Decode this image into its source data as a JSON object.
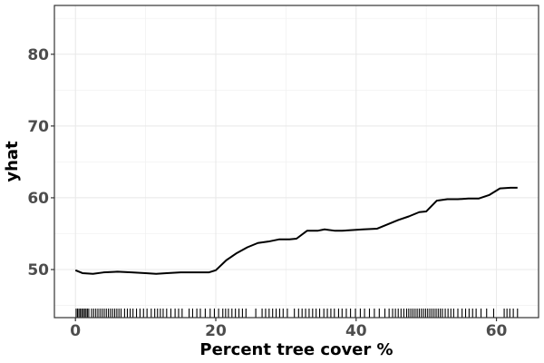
{
  "chart_data": {
    "type": "line",
    "xlabel": "Percent tree cover %",
    "ylabel": "yhat",
    "xlim": [
      -3,
      66
    ],
    "ylim": [
      43.3,
      86.8
    ],
    "x_ticks": [
      0,
      20,
      40,
      60
    ],
    "y_ticks": [
      50,
      60,
      70,
      80
    ],
    "grid": true,
    "series": [
      {
        "x": [
          0,
          1,
          2.5,
          4,
          6,
          8,
          10,
          11.5,
          13,
          15,
          17,
          19,
          20,
          21.5,
          23,
          24.5,
          26,
          27.5,
          29,
          30.5,
          31.5,
          33,
          34.5,
          35.5,
          37,
          38,
          39.5,
          41,
          43,
          44.5,
          46,
          47.5,
          49,
          50,
          51.5,
          53,
          54.5,
          56,
          57.5,
          59,
          60.5,
          62,
          63
        ],
        "y": [
          49.9,
          49.5,
          49.4,
          49.6,
          49.7,
          49.6,
          49.5,
          49.4,
          49.5,
          49.6,
          49.6,
          49.6,
          49.9,
          51.3,
          52.3,
          53.1,
          53.7,
          53.9,
          54.2,
          54.2,
          54.3,
          55.4,
          55.4,
          55.6,
          55.4,
          55.4,
          55.5,
          55.6,
          55.7,
          56.3,
          56.9,
          57.4,
          58.0,
          58.1,
          59.6,
          59.8,
          59.8,
          59.9,
          59.9,
          60.4,
          61.3,
          61.4,
          61.4
        ]
      }
    ],
    "rug_x": [
      0.1,
      0.3,
      0.5,
      0.7,
      0.9,
      1.1,
      1.3,
      1.5,
      1.7,
      1.9,
      2.3,
      2.6,
      2.9,
      3.2,
      3.5,
      3.8,
      4.1,
      4.4,
      4.7,
      5.0,
      5.3,
      5.6,
      5.9,
      6.2,
      6.5,
      7.0,
      7.4,
      7.8,
      8.2,
      8.7,
      9.2,
      9.7,
      10.2,
      10.8,
      11.3,
      11.7,
      12.1,
      12.5,
      13.0,
      13.6,
      14.2,
      14.7,
      15.2,
      16.2,
      16.7,
      17.3,
      17.8,
      18.5,
      19.2,
      19.8,
      20.4,
      21.0,
      21.4,
      21.8,
      22.3,
      22.8,
      23.3,
      23.8,
      24.3,
      25.7,
      26.6,
      27.1,
      27.6,
      28.1,
      28.6,
      29.1,
      29.6,
      30.2,
      31.2,
      31.8,
      32.3,
      32.8,
      33.3,
      33.8,
      34.3,
      34.8,
      35.4,
      35.9,
      36.4,
      36.9,
      37.5,
      38.0,
      38.6,
      39.2,
      39.9,
      40.6,
      41.2,
      41.9,
      42.6,
      43.3,
      44.1,
      44.7,
      45.2,
      45.6,
      46.0,
      46.4,
      46.8,
      47.2,
      47.5,
      47.8,
      48.1,
      48.4,
      48.7,
      49.0,
      49.3,
      49.6,
      49.9,
      50.2,
      50.5,
      50.8,
      51.1,
      51.4,
      51.7,
      52.0,
      52.3,
      52.7,
      53.1,
      53.5,
      53.9,
      54.5,
      55.1,
      55.6,
      56.1,
      56.6,
      57.1,
      57.8,
      58.6,
      59.6,
      61.1,
      61.5,
      61.9,
      62.4,
      63.0
    ]
  }
}
